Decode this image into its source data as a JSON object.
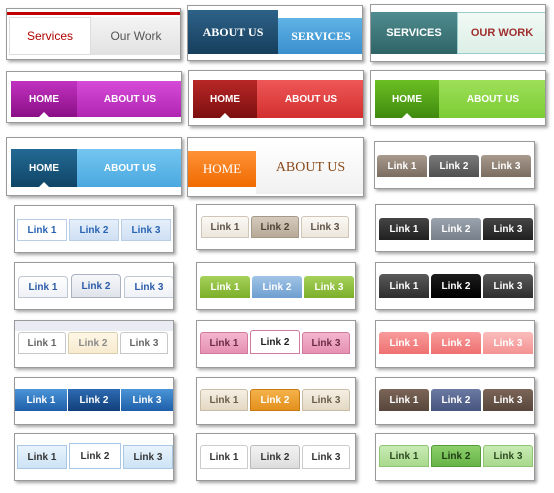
{
  "menus": {
    "m1": {
      "services": "Services",
      "our_work": "Our Work"
    },
    "m2": {
      "about_us": "ABOUT US",
      "services": "SERVICES"
    },
    "m3": {
      "services": "SERVICES",
      "our_work": "OUR WORK"
    },
    "m4": {
      "home": "HOME",
      "about_us": "ABOUT US"
    },
    "m5": {
      "home": "HOME",
      "about_us": "ABOUT US"
    },
    "m6": {
      "home": "HOME",
      "about_us": "ABOUT US"
    },
    "m7": {
      "home": "HOME",
      "about_us": "ABOUT US"
    },
    "m8": {
      "home": "HOME",
      "about_us": "ABOUT US"
    },
    "links": [
      "Link 1",
      "Link 2",
      "Link 3"
    ]
  },
  "colors": {
    "red_accent": "#c00000",
    "magenta": "#a4149f",
    "dark_red": "#a61d1d",
    "green": "#5dab1e",
    "blue": "#1f6ea8",
    "orange": "#ff7d12"
  }
}
